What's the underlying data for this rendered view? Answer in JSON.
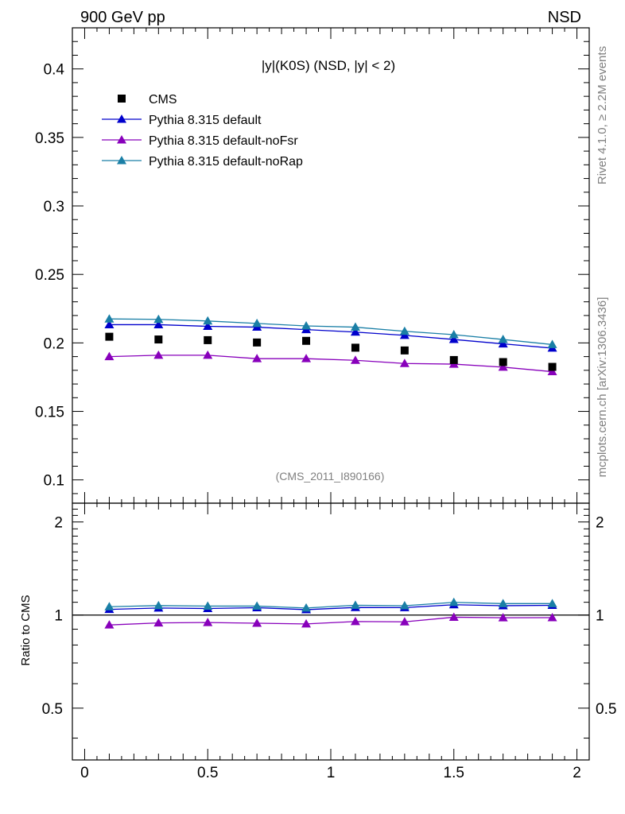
{
  "header": {
    "left_label": "900 GeV pp",
    "right_label": "NSD"
  },
  "side_labels": {
    "rivet": "Rivet 4.1.0, ≥ 2.2M events",
    "mcplots": "mcplots.cern.ch [arXiv:1306.3436]"
  },
  "chart_data": {
    "type": "scatter",
    "title": "|y|(K0S) (NSD, |y| < 2)",
    "analysis_tag": "(CMS_2011_I890166)",
    "xlabel": "",
    "ylabel": "",
    "ratio_ylabel": "Ratio to CMS",
    "xlim": [
      -0.05,
      2.05
    ],
    "ylim": [
      0.083,
      0.43
    ],
    "ratio_ylim": [
      0.34,
      2.3
    ],
    "x_ticks": [
      0,
      0.5,
      1,
      1.5,
      2
    ],
    "x_tick_labels": [
      "0",
      "0.5",
      "1",
      "1.5",
      "2"
    ],
    "y_ticks": [
      0.1,
      0.15,
      0.2,
      0.25,
      0.3,
      0.35,
      0.4
    ],
    "y_tick_labels": [
      "0.1",
      "0.15",
      "0.2",
      "0.25",
      "0.3",
      "0.35",
      "0.4"
    ],
    "ratio_ticks": [
      0.5,
      1,
      2
    ],
    "ratio_tick_labels": [
      "0.5",
      "1",
      "2"
    ],
    "x": [
      0.1,
      0.3,
      0.5,
      0.7,
      0.9,
      1.1,
      1.3,
      1.5,
      1.7,
      1.9
    ],
    "data": {
      "name": "CMS",
      "color": "#000000",
      "values": [
        0.2045,
        0.2025,
        0.202,
        0.2003,
        0.2015,
        0.1965,
        0.1945,
        0.1875,
        0.186,
        0.1825
      ]
    },
    "series": [
      {
        "name": "Pythia 8.315 default",
        "color": "#0000cc",
        "values": [
          0.2133,
          0.2133,
          0.2121,
          0.2115,
          0.2097,
          0.2079,
          0.2055,
          0.2025,
          0.1993,
          0.1962
        ],
        "ratio": [
          1.043,
          1.054,
          1.05,
          1.056,
          1.041,
          1.058,
          1.057,
          1.08,
          1.072,
          1.075
        ]
      },
      {
        "name": "Pythia 8.315 default-noFsr",
        "color": "#8800bb",
        "values": [
          0.19,
          0.191,
          0.191,
          0.1885,
          0.1885,
          0.1873,
          0.185,
          0.1845,
          0.1823,
          0.179
        ],
        "ratio": [
          0.929,
          0.943,
          0.946,
          0.941,
          0.936,
          0.953,
          0.951,
          0.984,
          0.98,
          0.981
        ]
      },
      {
        "name": "Pythia 8.315 default-noRap",
        "color": "#1a7fa6",
        "values": [
          0.2175,
          0.2172,
          0.216,
          0.2142,
          0.2124,
          0.2115,
          0.2085,
          0.206,
          0.2025,
          0.1988
        ],
        "ratio": [
          1.064,
          1.073,
          1.069,
          1.069,
          1.054,
          1.076,
          1.072,
          1.099,
          1.089,
          1.089
        ]
      }
    ],
    "legend_position": "top-left"
  }
}
